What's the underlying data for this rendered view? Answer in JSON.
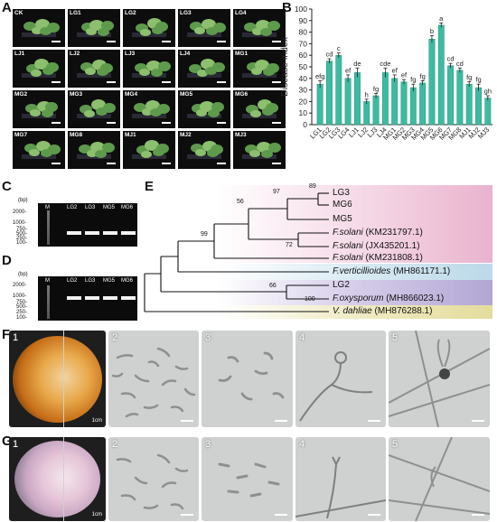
{
  "panels": {
    "A": "A",
    "B": "B",
    "C": "C",
    "D": "D",
    "E": "E",
    "F": "F",
    "G": "G"
  },
  "panel_a": {
    "tiles": [
      "CK",
      "LG1",
      "LG2",
      "LG3",
      "LG4",
      "LJ1",
      "LJ2",
      "LJ3",
      "LJ4",
      "MG1",
      "MG2",
      "MG3",
      "MG4",
      "MG5",
      "MG6",
      "MG7",
      "MG8",
      "MJ1",
      "MJ2",
      "MJ3"
    ]
  },
  "chart_data": {
    "type": "bar",
    "ylabel": "Disease index",
    "ylim": [
      0,
      100
    ],
    "yticks": [
      0,
      10,
      20,
      30,
      40,
      50,
      60,
      70,
      80,
      90,
      100
    ],
    "categories": [
      "LG1",
      "LG2",
      "LG3",
      "LG4",
      "LJ1",
      "LJ2",
      "LJ3",
      "LJ4",
      "MG1",
      "MG2",
      "MG3",
      "MG4",
      "MG5",
      "MG6",
      "MG7",
      "MG8",
      "MJ1",
      "MJ2",
      "MJ3"
    ],
    "values": [
      35,
      55,
      60,
      40,
      45,
      20,
      25,
      45,
      40,
      37,
      32,
      36,
      74,
      86,
      51,
      47,
      35,
      32,
      23
    ],
    "errors": [
      3,
      2,
      2,
      3,
      4,
      2,
      2,
      4,
      3,
      2,
      3,
      2,
      3,
      2,
      2,
      2,
      2,
      3,
      2
    ],
    "letters": [
      "efg",
      "cd",
      "c",
      "ef",
      "de",
      "h",
      "fg",
      "cde",
      "ef",
      "ef",
      "fg",
      "fg",
      "b",
      "a",
      "cd",
      "cd",
      "fg",
      "fg",
      "gh"
    ],
    "bar_color": "#3dbba0"
  },
  "gel_c": {
    "bp": "(bp)",
    "lanes": [
      "M",
      "LG2",
      "LG3",
      "MG5",
      "MG6"
    ],
    "markers": [
      "2000-",
      "1000-",
      "750-",
      "500-",
      "250-",
      "100-"
    ]
  },
  "gel_d": {
    "bp": "(bp)",
    "lanes": [
      "M",
      "LG2",
      "LG3",
      "MG5",
      "MG6"
    ],
    "markers": [
      "2000-",
      "1000-",
      "750-",
      "500-",
      "250-",
      "100-"
    ]
  },
  "tree": {
    "taxa": [
      {
        "prefix": "LG3",
        "sp": "",
        "suffix": ""
      },
      {
        "prefix": "MG6",
        "sp": "",
        "suffix": ""
      },
      {
        "prefix": "MG5",
        "sp": "",
        "suffix": ""
      },
      {
        "prefix": "",
        "sp": "F.solani",
        "suffix": " (KM231797.1)"
      },
      {
        "prefix": "",
        "sp": "F.solani",
        "suffix": " (JX435201.1)"
      },
      {
        "prefix": "",
        "sp": "F.solani",
        "suffix": " (KM231808.1)"
      },
      {
        "prefix": "",
        "sp": "F.verticillioides",
        "suffix": " (MH861171.1)"
      },
      {
        "prefix": "LG2",
        "sp": "",
        "suffix": ""
      },
      {
        "prefix": "",
        "sp": "F.oxysporum",
        "suffix": " (MH866023.1)"
      },
      {
        "prefix": "",
        "sp": "V. dahliae",
        "suffix": " (MH876288.1)"
      }
    ],
    "bootstrap": [
      "89",
      "97",
      "56",
      "99",
      "72",
      "66",
      "100"
    ],
    "colors": {
      "pink": "#ecb6d0",
      "blue": "#c2dcea",
      "purple": "#b6aad6",
      "yellow": "#e6e0a4"
    }
  },
  "micro_f": {
    "numbers": [
      "1",
      "2",
      "3",
      "4",
      "5"
    ],
    "scale": "1cm"
  },
  "micro_g": {
    "numbers": [
      "1",
      "2",
      "3",
      "4",
      "5"
    ],
    "scale": "1cm"
  }
}
